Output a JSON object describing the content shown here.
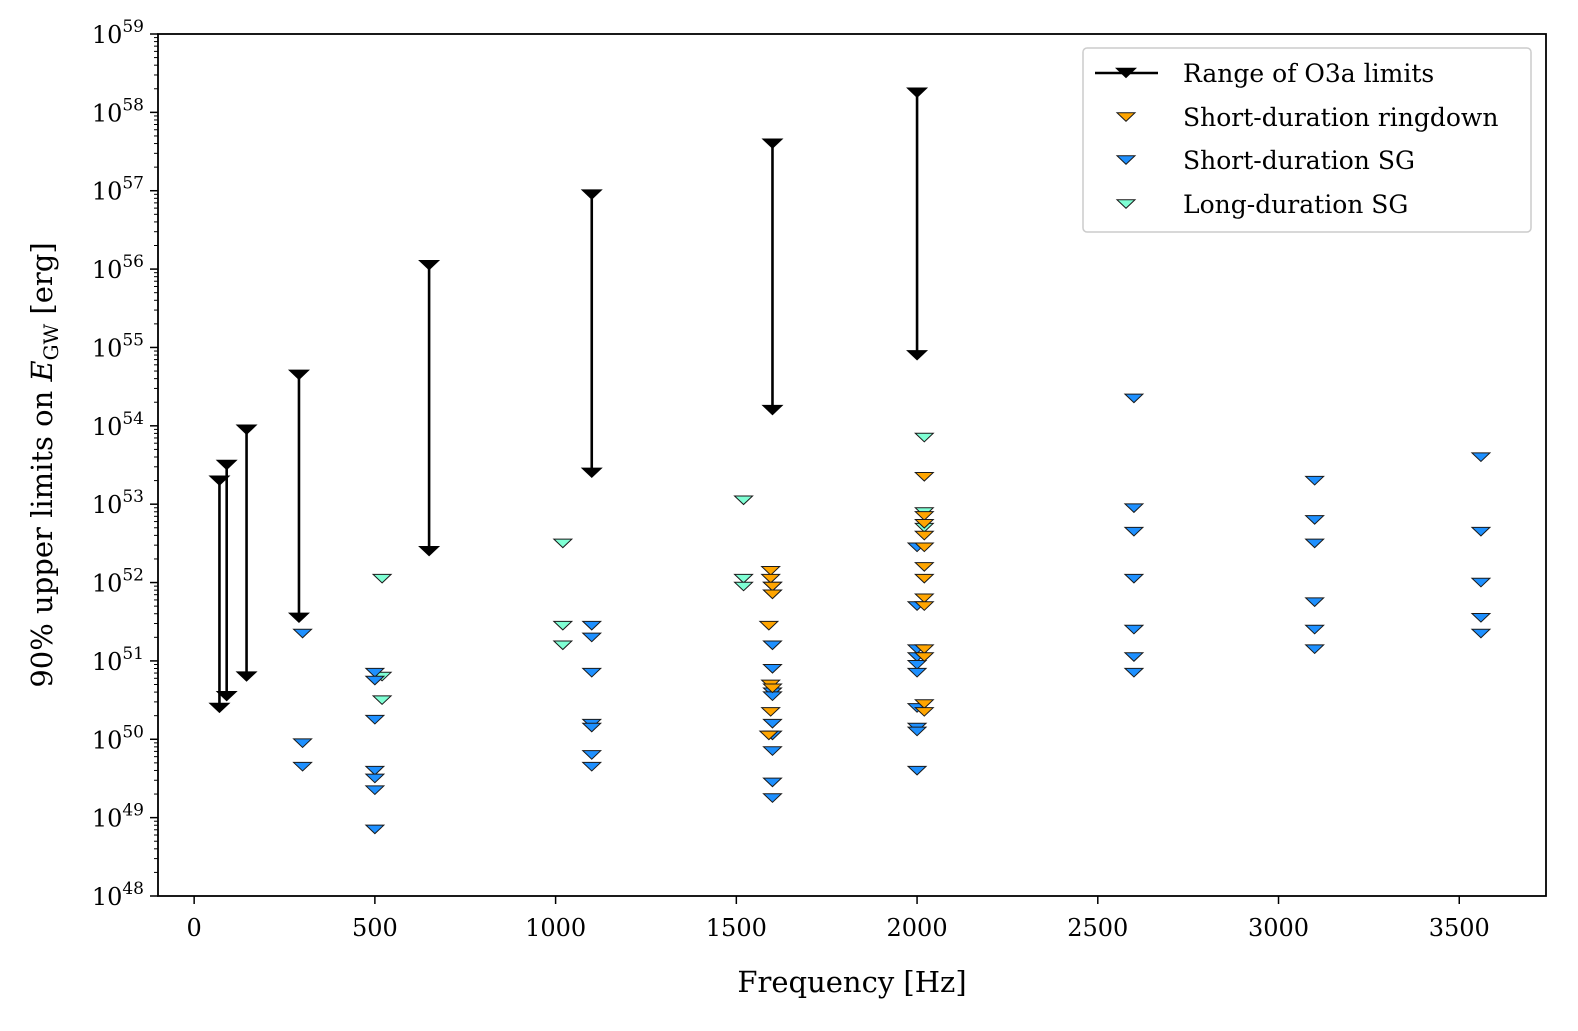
{
  "chart_data": {
    "type": "scatter",
    "xlabel": "Frequency [Hz]",
    "ylabel": {
      "prefix": "90% upper limits on ",
      "var": "E",
      "sub": "GW",
      "suffix": " [erg]"
    },
    "xlim": [
      -100,
      3740
    ],
    "ylim_exponent": [
      48,
      59
    ],
    "yscale": "log",
    "grid": false,
    "legend_placement": "top-right",
    "x_ticks": [
      0,
      500,
      1000,
      1500,
      2000,
      2500,
      3000,
      3500
    ],
    "y_ticks": [
      48,
      49,
      50,
      51,
      52,
      53,
      54,
      55,
      56,
      57,
      58,
      59
    ],
    "y_tick_base": "10",
    "legend": [
      {
        "key": "range",
        "label": "Range of O3a limits"
      },
      {
        "key": "ringdown",
        "label": "Short-duration ringdown"
      },
      {
        "key": "sg",
        "label": "Short-duration SG"
      },
      {
        "key": "long",
        "label": "Long-duration SG"
      }
    ],
    "colors": {
      "range": "#000000",
      "ringdown": "#ffa500",
      "sg": "#1e90ff",
      "long": "#7fffd4"
    },
    "series": [
      {
        "key": "range",
        "label": "Range of O3a limits",
        "ranges": [
          {
            "x": 70,
            "top": 53.3,
            "bottom": 50.4
          },
          {
            "x": 90,
            "top": 53.5,
            "bottom": 50.55
          },
          {
            "x": 145,
            "top": 53.95,
            "bottom": 50.8
          },
          {
            "x": 290,
            "top": 54.65,
            "bottom": 51.55
          },
          {
            "x": 650,
            "top": 56.05,
            "bottom": 52.4
          },
          {
            "x": 1100,
            "top": 56.95,
            "bottom": 53.4
          },
          {
            "x": 1600,
            "top": 57.6,
            "bottom": 54.2
          },
          {
            "x": 2000,
            "top": 58.25,
            "bottom": 54.9
          }
        ]
      },
      {
        "key": "ringdown",
        "label": "Short-duration ringdown",
        "points": [
          [
            1595,
            52.15
          ],
          [
            1595,
            52.05
          ],
          [
            1600,
            51.95
          ],
          [
            1600,
            51.85
          ],
          [
            1590,
            51.45
          ],
          [
            1595,
            50.7
          ],
          [
            1600,
            50.65
          ],
          [
            1595,
            50.35
          ],
          [
            1590,
            50.05
          ],
          [
            2020,
            53.35
          ],
          [
            2020,
            52.85
          ],
          [
            2020,
            52.75
          ],
          [
            2020,
            52.6
          ],
          [
            2020,
            52.45
          ],
          [
            2020,
            52.2
          ],
          [
            2020,
            52.05
          ],
          [
            2020,
            51.8
          ],
          [
            2020,
            51.7
          ],
          [
            2020,
            51.15
          ],
          [
            2020,
            51.05
          ],
          [
            2020,
            50.45
          ],
          [
            2020,
            50.35
          ]
        ]
      },
      {
        "key": "sg",
        "label": "Short-duration SG",
        "points": [
          [
            300,
            51.35
          ],
          [
            300,
            49.95
          ],
          [
            300,
            49.65
          ],
          [
            500,
            50.85
          ],
          [
            500,
            50.75
          ],
          [
            500,
            50.25
          ],
          [
            500,
            49.6
          ],
          [
            500,
            49.5
          ],
          [
            500,
            49.35
          ],
          [
            500,
            48.85
          ],
          [
            1100,
            51.45
          ],
          [
            1100,
            51.3
          ],
          [
            1100,
            50.85
          ],
          [
            1100,
            50.2
          ],
          [
            1100,
            50.15
          ],
          [
            1100,
            49.8
          ],
          [
            1100,
            49.65
          ],
          [
            1600,
            51.95
          ],
          [
            1600,
            51.85
          ],
          [
            1600,
            51.2
          ],
          [
            1600,
            50.9
          ],
          [
            1600,
            50.6
          ],
          [
            1600,
            50.55
          ],
          [
            1600,
            50.2
          ],
          [
            1600,
            50.05
          ],
          [
            1600,
            49.85
          ],
          [
            1600,
            49.45
          ],
          [
            1600,
            49.25
          ],
          [
            2000,
            52.45
          ],
          [
            2000,
            51.7
          ],
          [
            2000,
            51.15
          ],
          [
            2000,
            51.05
          ],
          [
            2000,
            50.95
          ],
          [
            2000,
            50.85
          ],
          [
            2000,
            50.4
          ],
          [
            2000,
            50.15
          ],
          [
            2000,
            50.1
          ],
          [
            2000,
            49.6
          ],
          [
            2600,
            54.35
          ],
          [
            2600,
            52.95
          ],
          [
            2600,
            52.65
          ],
          [
            2600,
            52.05
          ],
          [
            2600,
            51.4
          ],
          [
            2600,
            51.05
          ],
          [
            2600,
            50.85
          ],
          [
            3100,
            53.3
          ],
          [
            3100,
            52.8
          ],
          [
            3100,
            52.5
          ],
          [
            3100,
            51.75
          ],
          [
            3100,
            51.4
          ],
          [
            3100,
            51.15
          ],
          [
            3560,
            53.6
          ],
          [
            3560,
            52.65
          ],
          [
            3560,
            52.0
          ],
          [
            3560,
            51.55
          ],
          [
            3560,
            51.35
          ]
        ]
      },
      {
        "key": "long",
        "label": "Long-duration SG",
        "points": [
          [
            520,
            52.05
          ],
          [
            520,
            50.8
          ],
          [
            520,
            50.5
          ],
          [
            1020,
            52.5
          ],
          [
            1020,
            51.45
          ],
          [
            1020,
            51.2
          ],
          [
            1520,
            53.05
          ],
          [
            1520,
            52.05
          ],
          [
            1520,
            51.95
          ],
          [
            2020,
            53.85
          ],
          [
            2020,
            52.9
          ],
          [
            2020,
            52.7
          ]
        ]
      }
    ]
  }
}
